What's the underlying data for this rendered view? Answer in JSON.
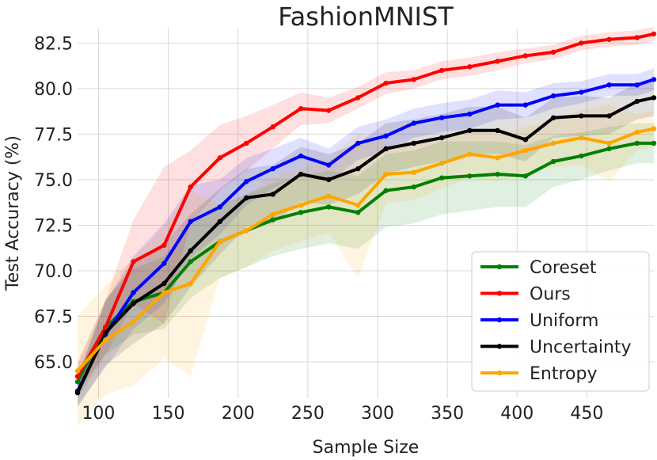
{
  "chart_data": {
    "type": "line",
    "title": "FashionMNIST",
    "xlabel": "Sample Size",
    "ylabel": "Test Accuracy (%)",
    "xlim": [
      85,
      498
    ],
    "ylim": [
      63.0,
      83.3
    ],
    "xticks": [
      "100",
      "150",
      "200",
      "250",
      "300",
      "350",
      "400",
      "450"
    ],
    "yticks": [
      "65.0",
      "67.5",
      "70.0",
      "72.5",
      "75.0",
      "77.5",
      "80.0",
      "82.5"
    ],
    "grid": true,
    "legend_position": "lower-right",
    "x": [
      85,
      105,
      125,
      147,
      166,
      187,
      206,
      225,
      245,
      265,
      286,
      306,
      326,
      346,
      366,
      386,
      406,
      426,
      446,
      466,
      486,
      498
    ],
    "series": [
      {
        "name": "Coreset",
        "color": "#008000",
        "values": [
          63.9,
          66.9,
          68.3,
          68.8,
          70.5,
          71.6,
          72.2,
          72.8,
          73.2,
          73.5,
          73.2,
          74.4,
          74.6,
          75.1,
          75.2,
          75.3,
          75.2,
          76.0,
          76.3,
          76.7,
          77.0,
          77.0
        ],
        "band": [
          0.9,
          1.5,
          1.8,
          2.0,
          2.0,
          2.0,
          2.0,
          2.0,
          2.0,
          2.0,
          2.0,
          2.0,
          2.0,
          2.0,
          1.9,
          1.8,
          1.7,
          1.4,
          1.3,
          1.2,
          1.1,
          1.1
        ]
      },
      {
        "name": "Ours",
        "color": "#ff0000",
        "values": [
          64.2,
          66.9,
          70.5,
          71.4,
          74.6,
          76.2,
          77.0,
          77.9,
          78.9,
          78.8,
          79.5,
          80.3,
          80.5,
          81.0,
          81.2,
          81.5,
          81.8,
          82.0,
          82.5,
          82.7,
          82.8,
          83.0
        ],
        "band": [
          0.8,
          1.5,
          2.3,
          4.3,
          2.0,
          1.8,
          1.5,
          1.2,
          0.9,
          0.7,
          0.6,
          0.6,
          0.5,
          0.5,
          0.5,
          0.5,
          0.4,
          0.4,
          0.4,
          0.4,
          0.4,
          0.4
        ]
      },
      {
        "name": "Uniform",
        "color": "#0000ff",
        "values": [
          63.4,
          66.5,
          68.8,
          70.4,
          72.7,
          73.5,
          74.9,
          75.6,
          76.3,
          75.8,
          77.0,
          77.4,
          78.1,
          78.4,
          78.6,
          79.1,
          79.1,
          79.6,
          79.8,
          80.2,
          80.2,
          80.5
        ],
        "band": [
          0.8,
          1.8,
          2.0,
          2.2,
          2.0,
          1.5,
          1.3,
          1.1,
          1.0,
          0.9,
          0.9,
          0.9,
          0.8,
          0.8,
          0.8,
          0.8,
          0.7,
          0.7,
          0.6,
          0.6,
          0.6,
          0.6
        ]
      },
      {
        "name": "Uncertainty",
        "color": "#000000",
        "values": [
          63.3,
          66.6,
          68.2,
          69.3,
          71.1,
          72.7,
          74.0,
          74.2,
          75.3,
          75.0,
          75.6,
          76.7,
          77.0,
          77.3,
          77.7,
          77.7,
          77.2,
          78.4,
          78.5,
          78.5,
          79.3,
          79.5
        ],
        "band": [
          0.8,
          1.8,
          2.2,
          2.2,
          2.0,
          1.8,
          1.6,
          1.6,
          1.5,
          1.4,
          1.4,
          1.4,
          1.3,
          1.3,
          1.3,
          1.3,
          1.2,
          1.1,
          1.1,
          1.0,
          1.0,
          1.0
        ]
      },
      {
        "name": "Entropy",
        "color": "#ffa500",
        "values": [
          64.5,
          66.2,
          67.2,
          68.8,
          69.3,
          71.6,
          72.2,
          73.1,
          73.6,
          74.1,
          73.6,
          75.3,
          75.4,
          75.9,
          76.4,
          76.2,
          76.6,
          77.0,
          77.3,
          77.0,
          77.6,
          77.8
        ],
        "band": [
          3.0,
          3.0,
          3.5,
          3.6,
          5.1,
          2.0,
          2.0,
          2.0,
          2.0,
          2.0,
          4.0,
          1.6,
          1.5,
          1.4,
          1.3,
          1.3,
          1.3,
          1.3,
          1.5,
          2.1,
          1.0,
          1.0
        ]
      }
    ]
  }
}
